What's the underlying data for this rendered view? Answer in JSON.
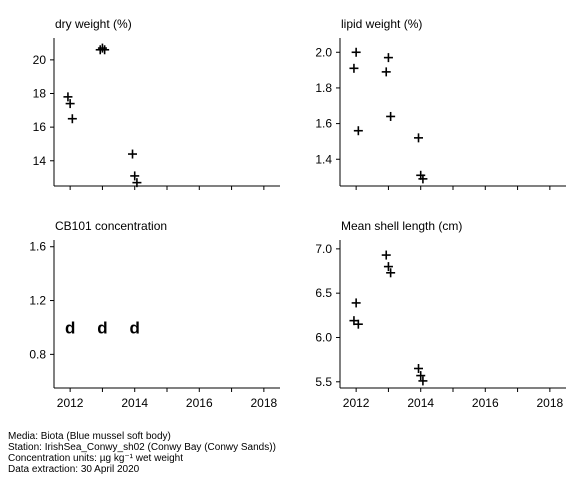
{
  "chart_data": [
    {
      "type": "scatter",
      "title": "dry weight (%)",
      "marker": "+",
      "xlim": [
        2011.5,
        2018.5
      ],
      "xticks": [
        2012,
        2014,
        2016,
        2018
      ],
      "ylim": [
        12.5,
        21.3
      ],
      "yticks": [
        14,
        16,
        18,
        20
      ],
      "ytick_labels": [
        "14",
        "16",
        "18",
        "20"
      ],
      "x_tick_labels_shown": false,
      "points": [
        {
          "x": 2012,
          "y": 17.8
        },
        {
          "x": 2012,
          "y": 17.4
        },
        {
          "x": 2012,
          "y": 16.5
        },
        {
          "x": 2013,
          "y": 20.6
        },
        {
          "x": 2013,
          "y": 20.7
        },
        {
          "x": 2013,
          "y": 20.6
        },
        {
          "x": 2014,
          "y": 14.4
        },
        {
          "x": 2014,
          "y": 13.1
        },
        {
          "x": 2014,
          "y": 12.7
        }
      ]
    },
    {
      "type": "scatter",
      "title": "lipid weight (%)",
      "marker": "+",
      "xlim": [
        2011.5,
        2018.5
      ],
      "xticks": [
        2012,
        2014,
        2016,
        2018
      ],
      "ylim": [
        1.25,
        2.08
      ],
      "yticks": [
        1.4,
        1.6,
        1.8,
        2.0
      ],
      "ytick_labels": [
        "1.4",
        "1.6",
        "1.8",
        "2.0"
      ],
      "x_tick_labels_shown": false,
      "points": [
        {
          "x": 2012,
          "y": 1.91
        },
        {
          "x": 2012,
          "y": 2.0
        },
        {
          "x": 2012,
          "y": 1.56
        },
        {
          "x": 2013,
          "y": 1.89
        },
        {
          "x": 2013,
          "y": 1.97
        },
        {
          "x": 2013,
          "y": 1.64
        },
        {
          "x": 2014,
          "y": 1.52
        },
        {
          "x": 2014,
          "y": 1.31
        },
        {
          "x": 2014,
          "y": 1.29
        }
      ]
    },
    {
      "type": "scatter",
      "title": "CB101 concentration",
      "marker": "d",
      "xlim": [
        2011.5,
        2018.5
      ],
      "xticks": [
        2012,
        2014,
        2016,
        2018
      ],
      "ylim": [
        0.55,
        1.65
      ],
      "yticks": [
        0.8,
        1.2,
        1.6
      ],
      "ytick_labels": [
        "0.8",
        "1.2",
        "1.6"
      ],
      "x_tick_labels_shown": true,
      "xtick_labels": [
        "2012",
        "2014",
        "2016",
        "2018"
      ],
      "points": [
        {
          "x": 2012,
          "y": 1.0
        },
        {
          "x": 2013,
          "y": 1.0
        },
        {
          "x": 2014,
          "y": 1.0
        }
      ]
    },
    {
      "type": "scatter",
      "title": "Mean shell length (cm)",
      "marker": "+",
      "xlim": [
        2011.5,
        2018.5
      ],
      "xticks": [
        2012,
        2014,
        2016,
        2018
      ],
      "ylim": [
        5.43,
        7.1
      ],
      "yticks": [
        5.5,
        6.0,
        6.5,
        7.0
      ],
      "ytick_labels": [
        "5.5",
        "6.0",
        "6.5",
        "7.0"
      ],
      "x_tick_labels_shown": true,
      "xtick_labels": [
        "2012",
        "2014",
        "2016",
        "2018"
      ],
      "points": [
        {
          "x": 2012,
          "y": 6.19
        },
        {
          "x": 2012,
          "y": 6.39
        },
        {
          "x": 2012,
          "y": 6.15
        },
        {
          "x": 2013,
          "y": 6.93
        },
        {
          "x": 2013,
          "y": 6.8
        },
        {
          "x": 2013,
          "y": 6.73
        },
        {
          "x": 2014,
          "y": 5.65
        },
        {
          "x": 2014,
          "y": 5.57
        },
        {
          "x": 2014,
          "y": 5.51
        }
      ]
    }
  ],
  "footer": {
    "media": "Media: Biota (Blue mussel soft body)",
    "station": "Station: IrishSea_Conwy_sh02 (Conwy Bay (Conwy Sands))",
    "units": "Concentration units:  µg kg⁻¹ wet weight",
    "extraction": "Data extraction: 30 April 2020"
  }
}
